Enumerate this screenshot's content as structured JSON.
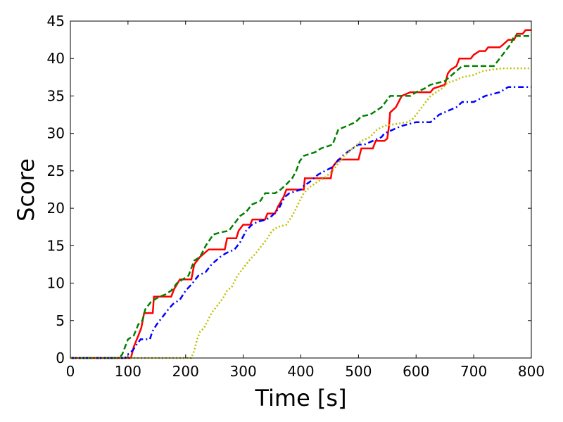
{
  "chart_data": {
    "type": "line",
    "title": "",
    "xlabel": "Time [s]",
    "ylabel": "Score",
    "xlim": [
      0,
      800
    ],
    "ylim": [
      0,
      45
    ],
    "xticks": [
      "0",
      "100",
      "200",
      "300",
      "400",
      "500",
      "600",
      "700",
      "800"
    ],
    "yticks": [
      "0",
      "5",
      "10",
      "15",
      "20",
      "25",
      "30",
      "35",
      "40",
      "45"
    ],
    "grid": false,
    "legend": "none",
    "series": [
      {
        "color": "#ff0000",
        "style": "solid",
        "points": [
          [
            0,
            0
          ],
          [
            105,
            0
          ],
          [
            110,
            1.5
          ],
          [
            118,
            3
          ],
          [
            123,
            4
          ],
          [
            128,
            6
          ],
          [
            143,
            6
          ],
          [
            145,
            8.2
          ],
          [
            175,
            8.2
          ],
          [
            180,
            9.2
          ],
          [
            190,
            10.5
          ],
          [
            210,
            10.5
          ],
          [
            215,
            12.5
          ],
          [
            225,
            13.5
          ],
          [
            240,
            14.5
          ],
          [
            268,
            14.5
          ],
          [
            272,
            16
          ],
          [
            288,
            16
          ],
          [
            292,
            17
          ],
          [
            300,
            17.8
          ],
          [
            312,
            17.8
          ],
          [
            316,
            18.5
          ],
          [
            338,
            18.5
          ],
          [
            342,
            19.3
          ],
          [
            355,
            19.3
          ],
          [
            360,
            20.2
          ],
          [
            370,
            21.5
          ],
          [
            375,
            22.5
          ],
          [
            405,
            22.5
          ],
          [
            407,
            24
          ],
          [
            452,
            24
          ],
          [
            455,
            25.5
          ],
          [
            465,
            26.5
          ],
          [
            500,
            26.5
          ],
          [
            505,
            28
          ],
          [
            525,
            28
          ],
          [
            530,
            29
          ],
          [
            545,
            29
          ],
          [
            550,
            29.3
          ],
          [
            553,
            31
          ],
          [
            555,
            32.8
          ],
          [
            565,
            33.5
          ],
          [
            575,
            35
          ],
          [
            590,
            35.5
          ],
          [
            625,
            35.5
          ],
          [
            630,
            36
          ],
          [
            650,
            36.5
          ],
          [
            655,
            38
          ],
          [
            660,
            38.5
          ],
          [
            670,
            39
          ],
          [
            675,
            40
          ],
          [
            695,
            40
          ],
          [
            700,
            40.5
          ],
          [
            710,
            41
          ],
          [
            720,
            41
          ],
          [
            725,
            41.5
          ],
          [
            745,
            41.5
          ],
          [
            750,
            41.8
          ],
          [
            760,
            42.5
          ],
          [
            770,
            42.5
          ],
          [
            775,
            43.3
          ],
          [
            785,
            43.3
          ],
          [
            790,
            43.8
          ],
          [
            800,
            43.8
          ]
        ]
      },
      {
        "color": "#008000",
        "style": "dashed",
        "points": [
          [
            0,
            0
          ],
          [
            85,
            0
          ],
          [
            90,
            0.5
          ],
          [
            95,
            1.5
          ],
          [
            100,
            2.5
          ],
          [
            110,
            3
          ],
          [
            118,
            4.5
          ],
          [
            125,
            5
          ],
          [
            130,
            6.5
          ],
          [
            140,
            7.5
          ],
          [
            150,
            8
          ],
          [
            165,
            8.5
          ],
          [
            175,
            9
          ],
          [
            185,
            10
          ],
          [
            195,
            10.5
          ],
          [
            205,
            11
          ],
          [
            215,
            13
          ],
          [
            225,
            13.5
          ],
          [
            235,
            15
          ],
          [
            248,
            16.5
          ],
          [
            262,
            16.8
          ],
          [
            275,
            17
          ],
          [
            285,
            18
          ],
          [
            295,
            19
          ],
          [
            305,
            19.5
          ],
          [
            315,
            20.5
          ],
          [
            330,
            21
          ],
          [
            338,
            22
          ],
          [
            355,
            22
          ],
          [
            365,
            22.5
          ],
          [
            375,
            23.2
          ],
          [
            385,
            24
          ],
          [
            392,
            25
          ],
          [
            398,
            26.3
          ],
          [
            405,
            27
          ],
          [
            425,
            27.5
          ],
          [
            435,
            28
          ],
          [
            455,
            28.5
          ],
          [
            465,
            30.5
          ],
          [
            480,
            31
          ],
          [
            495,
            31.5
          ],
          [
            505,
            32.3
          ],
          [
            520,
            32.5
          ],
          [
            540,
            33.5
          ],
          [
            555,
            35
          ],
          [
            590,
            35
          ],
          [
            600,
            35.5
          ],
          [
            615,
            36
          ],
          [
            625,
            36.5
          ],
          [
            650,
            37
          ],
          [
            665,
            38
          ],
          [
            680,
            39
          ],
          [
            735,
            39
          ],
          [
            745,
            40
          ],
          [
            755,
            41
          ],
          [
            765,
            42
          ],
          [
            770,
            43
          ],
          [
            800,
            43
          ]
        ]
      },
      {
        "color": "#0000ff",
        "style": "dashdot",
        "points": [
          [
            0,
            0
          ],
          [
            95,
            0
          ],
          [
            100,
            0.5
          ],
          [
            108,
            1
          ],
          [
            115,
            1.8
          ],
          [
            122,
            2.5
          ],
          [
            138,
            2.5
          ],
          [
            142,
            3.5
          ],
          [
            150,
            4.5
          ],
          [
            160,
            5.5
          ],
          [
            170,
            6.5
          ],
          [
            178,
            7.2
          ],
          [
            190,
            7.8
          ],
          [
            200,
            9
          ],
          [
            212,
            10
          ],
          [
            222,
            11
          ],
          [
            235,
            11.5
          ],
          [
            245,
            12.5
          ],
          [
            260,
            13.5
          ],
          [
            270,
            14
          ],
          [
            285,
            14.5
          ],
          [
            295,
            15.5
          ],
          [
            305,
            17
          ],
          [
            315,
            17.8
          ],
          [
            325,
            18.2
          ],
          [
            340,
            18.5
          ],
          [
            350,
            19
          ],
          [
            362,
            20
          ],
          [
            372,
            21.5
          ],
          [
            380,
            22
          ],
          [
            400,
            22.5
          ],
          [
            405,
            23
          ],
          [
            415,
            23.5
          ],
          [
            430,
            24.5
          ],
          [
            442,
            25
          ],
          [
            455,
            25.5
          ],
          [
            460,
            26
          ],
          [
            475,
            27.2
          ],
          [
            490,
            28
          ],
          [
            500,
            28.5
          ],
          [
            510,
            28.5
          ],
          [
            525,
            29
          ],
          [
            540,
            29.5
          ],
          [
            545,
            30
          ],
          [
            560,
            30.5
          ],
          [
            575,
            31
          ],
          [
            590,
            31.3
          ],
          [
            600,
            31.5
          ],
          [
            625,
            31.5
          ],
          [
            640,
            32.5
          ],
          [
            655,
            33
          ],
          [
            670,
            33.5
          ],
          [
            680,
            34.2
          ],
          [
            700,
            34.2
          ],
          [
            720,
            35
          ],
          [
            745,
            35.5
          ],
          [
            760,
            36.2
          ],
          [
            800,
            36.2
          ]
        ]
      },
      {
        "color": "#bfbf00",
        "style": "dotted",
        "points": [
          [
            0,
            0
          ],
          [
            210,
            0
          ],
          [
            215,
            1
          ],
          [
            220,
            2.5
          ],
          [
            225,
            3.5
          ],
          [
            232,
            4
          ],
          [
            245,
            6
          ],
          [
            255,
            7
          ],
          [
            265,
            8
          ],
          [
            272,
            9
          ],
          [
            280,
            9.5
          ],
          [
            290,
            11
          ],
          [
            300,
            12
          ],
          [
            310,
            13
          ],
          [
            322,
            14
          ],
          [
            332,
            15
          ],
          [
            342,
            16
          ],
          [
            350,
            17
          ],
          [
            360,
            17.5
          ],
          [
            375,
            17.8
          ],
          [
            385,
            19
          ],
          [
            392,
            20
          ],
          [
            398,
            21
          ],
          [
            405,
            22
          ],
          [
            415,
            22.8
          ],
          [
            428,
            23.5
          ],
          [
            440,
            24
          ],
          [
            455,
            25
          ],
          [
            465,
            26
          ],
          [
            475,
            27
          ],
          [
            490,
            28
          ],
          [
            505,
            29
          ],
          [
            520,
            29.5
          ],
          [
            532,
            30.5
          ],
          [
            545,
            31
          ],
          [
            560,
            31.2
          ],
          [
            585,
            31.5
          ],
          [
            595,
            32
          ],
          [
            605,
            33
          ],
          [
            615,
            34
          ],
          [
            625,
            35
          ],
          [
            635,
            35.5
          ],
          [
            645,
            36
          ],
          [
            655,
            36.8
          ],
          [
            665,
            37
          ],
          [
            680,
            37.5
          ],
          [
            700,
            37.8
          ],
          [
            715,
            38.3
          ],
          [
            730,
            38.5
          ],
          [
            750,
            38.7
          ],
          [
            800,
            38.7
          ]
        ]
      }
    ]
  }
}
